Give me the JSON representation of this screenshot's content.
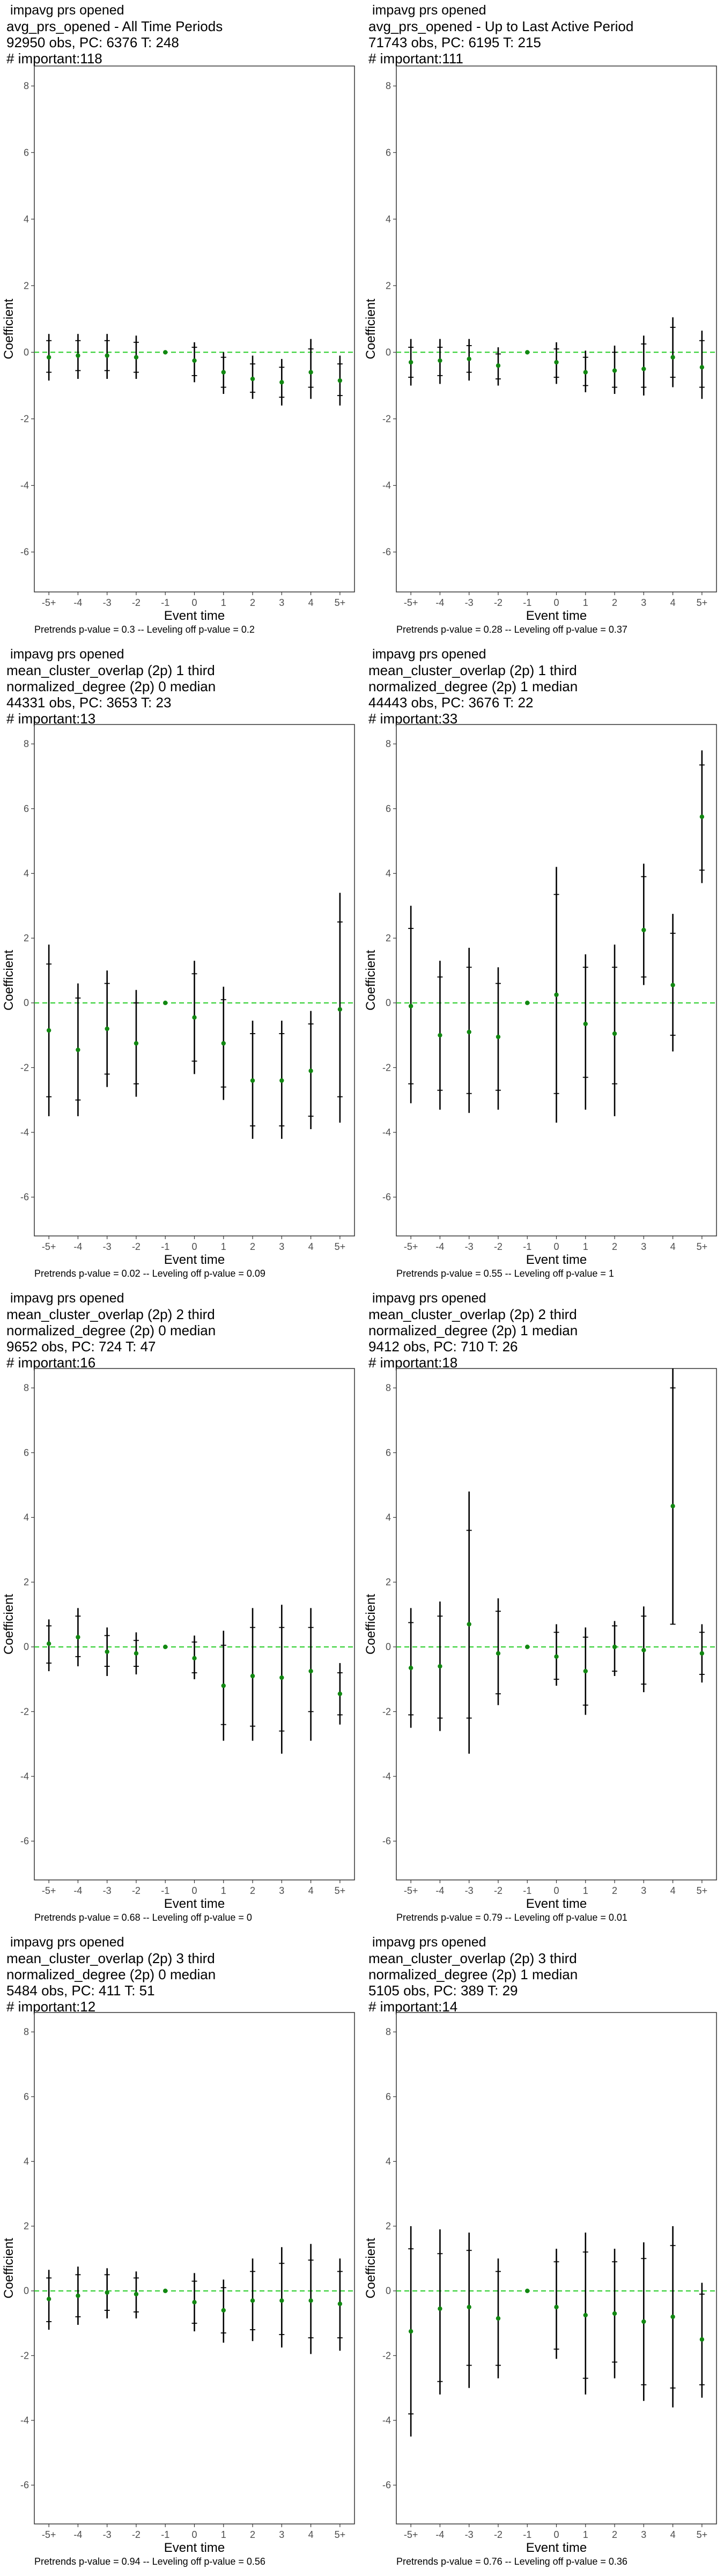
{
  "chart_data": [
    {
      "type": "scatter",
      "header_lines": [
        "impavg prs opened",
        "avg_prs_opened - All Time Periods",
        "92950 obs, PC: 6376 T: 248",
        "# important:118"
      ],
      "xlabel": "Event time",
      "ylabel": "Coefficient",
      "categories": [
        "-5+",
        "-4",
        "-3",
        "-2",
        "-1",
        "0",
        "1",
        "2",
        "3",
        "4",
        "5+"
      ],
      "ylim": [
        -7.2,
        8.6
      ],
      "yticks": [
        -6,
        -4,
        -2,
        0,
        2,
        4,
        6,
        8
      ],
      "estimate": [
        -0.15,
        -0.1,
        -0.1,
        -0.15,
        0.0,
        -0.25,
        -0.6,
        -0.8,
        -0.9,
        -0.6,
        -0.85
      ],
      "ci95": [
        [
          -0.85,
          0.55
        ],
        [
          -0.8,
          0.55
        ],
        [
          -0.8,
          0.55
        ],
        [
          -0.8,
          0.5
        ],
        [
          0.0,
          0.0
        ],
        [
          -0.9,
          0.3
        ],
        [
          -1.25,
          0.0
        ],
        [
          -1.4,
          -0.1
        ],
        [
          -1.6,
          -0.2
        ],
        [
          -1.4,
          0.4
        ],
        [
          -1.6,
          -0.1
        ]
      ],
      "ci90": [
        [
          -0.6,
          0.35
        ],
        [
          -0.55,
          0.35
        ],
        [
          -0.55,
          0.35
        ],
        [
          -0.6,
          0.3
        ],
        [
          0.0,
          0.0
        ],
        [
          -0.7,
          0.15
        ],
        [
          -1.05,
          -0.15
        ],
        [
          -1.2,
          -0.35
        ],
        [
          -1.35,
          -0.45
        ],
        [
          -1.05,
          0.1
        ],
        [
          -1.3,
          -0.35
        ]
      ],
      "reference_line": 0,
      "footnote": "Pretrends p-value = 0.3 -- Leveling off p-value = 0.2"
    },
    {
      "type": "scatter",
      "header_lines": [
        "impavg prs opened",
        "avg_prs_opened - Up to Last Active Period",
        "71743 obs, PC: 6195 T: 215",
        "# important:111"
      ],
      "xlabel": "Event time",
      "ylabel": "Coefficient",
      "categories": [
        "-5+",
        "-4",
        "-3",
        "-2",
        "-1",
        "0",
        "1",
        "2",
        "3",
        "4",
        "5+"
      ],
      "ylim": [
        -7.2,
        8.6
      ],
      "yticks": [
        -6,
        -4,
        -2,
        0,
        2,
        4,
        6,
        8
      ],
      "estimate": [
        -0.3,
        -0.25,
        -0.2,
        -0.4,
        0.0,
        -0.3,
        -0.6,
        -0.55,
        -0.5,
        -0.15,
        -0.45
      ],
      "ci95": [
        [
          -1.0,
          0.4
        ],
        [
          -0.95,
          0.4
        ],
        [
          -0.85,
          0.4
        ],
        [
          -1.0,
          0.15
        ],
        [
          0.0,
          0.0
        ],
        [
          -0.95,
          0.3
        ],
        [
          -1.2,
          0.05
        ],
        [
          -1.25,
          0.2
        ],
        [
          -1.3,
          0.5
        ],
        [
          -1.05,
          1.05
        ],
        [
          -1.4,
          0.65
        ]
      ],
      "ci90": [
        [
          -0.75,
          0.15
        ],
        [
          -0.7,
          0.15
        ],
        [
          -0.6,
          0.2
        ],
        [
          -0.8,
          -0.05
        ],
        [
          0.0,
          0.0
        ],
        [
          -0.75,
          0.1
        ],
        [
          -1.0,
          -0.15
        ],
        [
          -1.05,
          0.0
        ],
        [
          -1.05,
          0.25
        ],
        [
          -0.75,
          0.75
        ],
        [
          -1.05,
          0.35
        ]
      ],
      "reference_line": 0,
      "footnote": "Pretrends p-value = 0.28 -- Leveling off p-value = 0.37"
    },
    {
      "type": "scatter",
      "header_lines": [
        "impavg prs opened",
        "mean_cluster_overlap (2p) 1 third",
        "normalized_degree (2p) 0 median",
        "44331 obs, PC: 3653 T: 23",
        "# important:13"
      ],
      "xlabel": "Event time",
      "ylabel": "Coefficient",
      "categories": [
        "-5+",
        "-4",
        "-3",
        "-2",
        "-1",
        "0",
        "1",
        "2",
        "3",
        "4",
        "5+"
      ],
      "ylim": [
        -7.2,
        8.6
      ],
      "yticks": [
        -6,
        -4,
        -2,
        0,
        2,
        4,
        6,
        8
      ],
      "estimate": [
        -0.85,
        -1.45,
        -0.8,
        -1.25,
        0.0,
        -0.45,
        -1.25,
        -2.4,
        -2.4,
        -2.1,
        -0.2
      ],
      "ci95": [
        [
          -3.5,
          1.8
        ],
        [
          -3.5,
          0.6
        ],
        [
          -2.6,
          1.0
        ],
        [
          -2.9,
          0.4
        ],
        [
          0.0,
          0.0
        ],
        [
          -2.2,
          1.3
        ],
        [
          -3.0,
          0.5
        ],
        [
          -4.2,
          -0.55
        ],
        [
          -4.2,
          -0.55
        ],
        [
          -3.9,
          -0.25
        ],
        [
          -3.7,
          3.4
        ]
      ],
      "ci90": [
        [
          -2.9,
          1.2
        ],
        [
          -3.0,
          0.15
        ],
        [
          -2.2,
          0.6
        ],
        [
          -2.5,
          0.0
        ],
        [
          0.0,
          0.0
        ],
        [
          -1.8,
          0.9
        ],
        [
          -2.6,
          0.1
        ],
        [
          -3.8,
          -0.95
        ],
        [
          -3.8,
          -0.95
        ],
        [
          -3.5,
          -0.65
        ],
        [
          -2.9,
          2.5
        ]
      ],
      "reference_line": 0,
      "footnote": "Pretrends p-value = 0.02 -- Leveling off p-value = 0.09"
    },
    {
      "type": "scatter",
      "header_lines": [
        "impavg prs opened",
        "mean_cluster_overlap (2p) 1 third",
        "normalized_degree (2p) 1 median",
        "44443 obs, PC: 3676 T: 22",
        "# important:33"
      ],
      "xlabel": "Event time",
      "ylabel": "Coefficient",
      "categories": [
        "-5+",
        "-4",
        "-3",
        "-2",
        "-1",
        "0",
        "1",
        "2",
        "3",
        "4",
        "5+"
      ],
      "ylim": [
        -7.2,
        8.6
      ],
      "yticks": [
        -6,
        -4,
        -2,
        0,
        2,
        4,
        6,
        8
      ],
      "estimate": [
        -0.1,
        -1.0,
        -0.9,
        -1.05,
        0.0,
        0.25,
        -0.65,
        -0.95,
        2.25,
        0.55,
        5.75
      ],
      "ci95": [
        [
          -3.1,
          3.0
        ],
        [
          -3.3,
          1.3
        ],
        [
          -3.4,
          1.7
        ],
        [
          -3.3,
          1.1
        ],
        [
          0.0,
          0.0
        ],
        [
          -3.7,
          4.2
        ],
        [
          -3.3,
          1.5
        ],
        [
          -3.5,
          1.8
        ],
        [
          0.55,
          4.3
        ],
        [
          -1.5,
          2.75
        ],
        [
          3.7,
          7.8
        ]
      ],
      "ci90": [
        [
          -2.5,
          2.3
        ],
        [
          -2.7,
          0.8
        ],
        [
          -2.8,
          1.1
        ],
        [
          -2.7,
          0.6
        ],
        [
          0.0,
          0.0
        ],
        [
          -2.8,
          3.35
        ],
        [
          -2.3,
          1.1
        ],
        [
          -2.5,
          1.1
        ],
        [
          0.8,
          3.9
        ],
        [
          -1.0,
          2.15
        ],
        [
          4.1,
          7.35
        ]
      ],
      "reference_line": 0,
      "footnote": "Pretrends p-value = 0.55 -- Leveling off p-value = 1"
    },
    {
      "type": "scatter",
      "header_lines": [
        "impavg prs opened",
        "mean_cluster_overlap (2p) 2 third",
        "normalized_degree (2p) 0 median",
        "9652 obs, PC: 724 T: 47",
        "# important:16"
      ],
      "xlabel": "Event time",
      "ylabel": "Coefficient",
      "categories": [
        "-5+",
        "-4",
        "-3",
        "-2",
        "-1",
        "0",
        "1",
        "2",
        "3",
        "4",
        "5+"
      ],
      "ylim": [
        -7.2,
        8.6
      ],
      "yticks": [
        -6,
        -4,
        -2,
        0,
        2,
        4,
        6,
        8
      ],
      "estimate": [
        0.1,
        0.3,
        -0.15,
        -0.2,
        0.0,
        -0.35,
        -1.2,
        -0.9,
        -0.95,
        -0.75,
        -1.45
      ],
      "ci95": [
        [
          -0.75,
          0.85
        ],
        [
          -0.6,
          1.2
        ],
        [
          -0.9,
          0.6
        ],
        [
          -0.85,
          0.45
        ],
        [
          0.0,
          0.0
        ],
        [
          -1.0,
          0.35
        ],
        [
          -2.9,
          0.5
        ],
        [
          -2.9,
          1.2
        ],
        [
          -3.3,
          1.3
        ],
        [
          -2.9,
          1.2
        ],
        [
          -2.4,
          -0.5
        ]
      ],
      "ci90": [
        [
          -0.5,
          0.65
        ],
        [
          -0.3,
          0.95
        ],
        [
          -0.6,
          0.35
        ],
        [
          -0.6,
          0.2
        ],
        [
          0.0,
          0.0
        ],
        [
          -0.8,
          0.15
        ],
        [
          -2.4,
          0.05
        ],
        [
          -2.45,
          0.6
        ],
        [
          -2.6,
          0.6
        ],
        [
          -2.0,
          0.6
        ],
        [
          -2.1,
          -0.8
        ]
      ],
      "reference_line": 0,
      "footnote": "Pretrends p-value = 0.68 -- Leveling off p-value = 0"
    },
    {
      "type": "scatter",
      "header_lines": [
        "impavg prs opened",
        "mean_cluster_overlap (2p) 2 third",
        "normalized_degree (2p) 1 median",
        "9412 obs, PC: 710 T: 26",
        "# important:18"
      ],
      "xlabel": "Event time",
      "ylabel": "Coefficient",
      "categories": [
        "-5+",
        "-4",
        "-3",
        "-2",
        "-1",
        "0",
        "1",
        "2",
        "3",
        "4",
        "5+"
      ],
      "ylim": [
        -7.2,
        8.6
      ],
      "yticks": [
        -6,
        -4,
        -2,
        0,
        2,
        4,
        6,
        8
      ],
      "estimate": [
        -0.65,
        -0.6,
        0.7,
        -0.2,
        0.0,
        -0.3,
        -0.75,
        0.0,
        -0.1,
        4.35,
        -0.2
      ],
      "ci95": [
        [
          -2.5,
          1.2
        ],
        [
          -2.6,
          1.4
        ],
        [
          -3.3,
          4.8
        ],
        [
          -1.8,
          1.5
        ],
        [
          0.0,
          0.0
        ],
        [
          -1.2,
          0.7
        ],
        [
          -2.1,
          0.6
        ],
        [
          -0.9,
          0.8
        ],
        [
          -1.4,
          1.25
        ],
        [
          0.7,
          8.6
        ],
        [
          -1.1,
          0.7
        ]
      ],
      "ci90": [
        [
          -2.1,
          0.75
        ],
        [
          -2.2,
          0.95
        ],
        [
          -2.2,
          3.6
        ],
        [
          -1.45,
          1.1
        ],
        [
          0.0,
          0.0
        ],
        [
          -1.0,
          0.45
        ],
        [
          -1.8,
          0.3
        ],
        [
          -0.75,
          0.65
        ],
        [
          -1.15,
          0.95
        ],
        [
          0.7,
          8.0
        ],
        [
          -0.85,
          0.45
        ]
      ],
      "reference_line": 0,
      "footnote": "Pretrends p-value = 0.79 -- Leveling off p-value = 0.01"
    },
    {
      "type": "scatter",
      "header_lines": [
        "impavg prs opened",
        "mean_cluster_overlap (2p) 3 third",
        "normalized_degree (2p) 0 median",
        "5484 obs, PC: 411 T: 51",
        "# important:12"
      ],
      "xlabel": "Event time",
      "ylabel": "Coefficient",
      "categories": [
        "-5+",
        "-4",
        "-3",
        "-2",
        "-1",
        "0",
        "1",
        "2",
        "3",
        "4",
        "5+"
      ],
      "ylim": [
        -7.2,
        8.6
      ],
      "yticks": [
        -6,
        -4,
        -2,
        0,
        2,
        4,
        6,
        8
      ],
      "estimate": [
        -0.25,
        -0.15,
        -0.05,
        -0.1,
        0.0,
        -0.35,
        -0.6,
        -0.3,
        -0.3,
        -0.3,
        -0.4
      ],
      "ci95": [
        [
          -1.2,
          0.65
        ],
        [
          -1.05,
          0.75
        ],
        [
          -0.85,
          0.7
        ],
        [
          -0.85,
          0.6
        ],
        [
          0.0,
          0.0
        ],
        [
          -1.25,
          0.55
        ],
        [
          -1.6,
          0.35
        ],
        [
          -1.55,
          1.0
        ],
        [
          -1.75,
          1.35
        ],
        [
          -1.95,
          1.45
        ],
        [
          -1.85,
          1.0
        ]
      ],
      "ci90": [
        [
          -0.95,
          0.4
        ],
        [
          -0.8,
          0.5
        ],
        [
          -0.6,
          0.5
        ],
        [
          -0.65,
          0.4
        ],
        [
          0.0,
          0.0
        ],
        [
          -1.0,
          0.3
        ],
        [
          -1.3,
          0.1
        ],
        [
          -1.2,
          0.6
        ],
        [
          -1.35,
          0.85
        ],
        [
          -1.45,
          0.95
        ],
        [
          -1.45,
          0.6
        ]
      ],
      "reference_line": 0,
      "footnote": "Pretrends p-value = 0.94 -- Leveling off p-value = 0.56"
    },
    {
      "type": "scatter",
      "header_lines": [
        "impavg prs opened",
        "mean_cluster_overlap (2p) 3 third",
        "normalized_degree (2p) 1 median",
        "5105 obs, PC: 389 T: 29",
        "# important:14"
      ],
      "xlabel": "Event time",
      "ylabel": "Coefficient",
      "categories": [
        "-5+",
        "-4",
        "-3",
        "-2",
        "-1",
        "0",
        "1",
        "2",
        "3",
        "4",
        "5+"
      ],
      "ylim": [
        -7.2,
        8.6
      ],
      "yticks": [
        -6,
        -4,
        -2,
        0,
        2,
        4,
        6,
        8
      ],
      "estimate": [
        -1.25,
        -0.55,
        -0.5,
        -0.85,
        0.0,
        -0.5,
        -0.75,
        -0.7,
        -0.95,
        -0.8,
        -1.5
      ],
      "ci95": [
        [
          -4.5,
          2.0
        ],
        [
          -3.2,
          1.9
        ],
        [
          -3.0,
          1.8
        ],
        [
          -2.7,
          1.0
        ],
        [
          0.0,
          0.0
        ],
        [
          -2.1,
          1.3
        ],
        [
          -3.2,
          1.8
        ],
        [
          -2.7,
          1.3
        ],
        [
          -3.4,
          1.5
        ],
        [
          -3.6,
          2.0
        ],
        [
          -3.3,
          0.25
        ]
      ],
      "ci90": [
        [
          -3.8,
          1.3
        ],
        [
          -2.8,
          1.15
        ],
        [
          -2.3,
          1.25
        ],
        [
          -2.3,
          0.6
        ],
        [
          0.0,
          0.0
        ],
        [
          -1.8,
          0.9
        ],
        [
          -2.7,
          1.2
        ],
        [
          -2.2,
          0.9
        ],
        [
          -2.9,
          1.0
        ],
        [
          -3.0,
          1.4
        ],
        [
          -2.9,
          -0.1
        ]
      ],
      "reference_line": 0,
      "footnote": "Pretrends p-value = 0.76 -- Leveling off p-value = 0.36"
    }
  ]
}
